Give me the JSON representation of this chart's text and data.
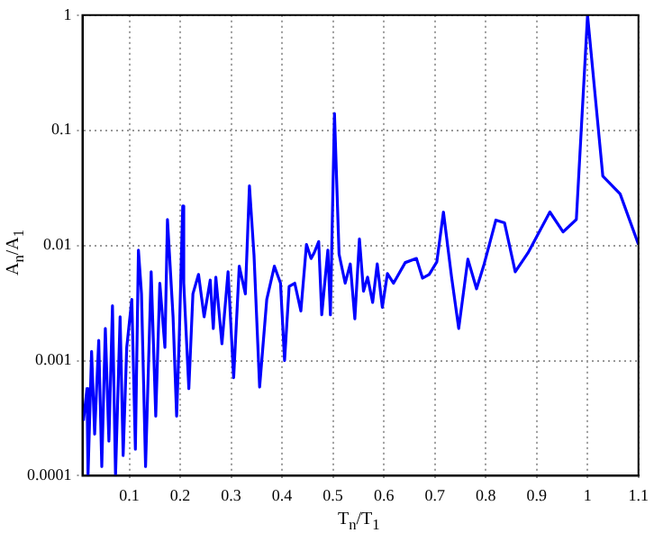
{
  "chart_data": {
    "type": "line",
    "xlabel": "T$_{n}$/T$_{1}$",
    "ylabel": "A$_{n}$/A$_{1}$",
    "log": "y",
    "grid": true,
    "legend": false,
    "marker": "none",
    "line_style": "solid",
    "xlim": [
      0.008,
      1.1
    ],
    "xticks": [
      0.1,
      0.2,
      0.3,
      0.4,
      0.5,
      0.6,
      0.7,
      0.8,
      0.9,
      1,
      1.1
    ],
    "ylim": [
      0.0001,
      1
    ],
    "yticks": [
      0.0001,
      0.001,
      0.01,
      0.1,
      1
    ],
    "x": [
      0.01,
      0.017,
      0.019,
      0.026,
      0.032,
      0.04,
      0.046,
      0.053,
      0.06,
      0.067,
      0.073,
      0.082,
      0.088,
      0.095,
      0.105,
      0.112,
      0.118,
      0.124,
      0.132,
      0.143,
      0.152,
      0.16,
      0.17,
      0.175,
      0.186,
      0.193,
      0.198,
      0.205,
      0.207,
      0.217,
      0.225,
      0.236,
      0.247,
      0.259,
      0.265,
      0.27,
      0.282,
      0.294,
      0.305,
      0.316,
      0.328,
      0.336,
      0.345,
      0.356,
      0.37,
      0.385,
      0.397,
      0.405,
      0.414,
      0.425,
      0.437,
      0.448,
      0.457,
      0.463,
      0.472,
      0.478,
      0.49,
      0.495,
      0.503,
      0.512,
      0.524,
      0.534,
      0.543,
      0.552,
      0.56,
      0.568,
      0.578,
      0.587,
      0.597,
      0.607,
      0.619,
      0.642,
      0.664,
      0.676,
      0.689,
      0.704,
      0.717,
      0.733,
      0.747,
      0.765,
      0.782,
      0.797,
      0.82,
      0.837,
      0.858,
      0.883,
      0.926,
      0.952,
      0.978,
      1,
      1.03,
      1.064,
      1.1
    ],
    "series": [
      {
        "color": "#0000ff",
        "values": [
          0.0003,
          0.00057,
          0.0001,
          0.0012,
          0.00023,
          0.0015,
          0.00012,
          0.0019,
          0.0002,
          0.003,
          0.0001,
          0.0024,
          0.00015,
          0.0013,
          0.0034,
          0.00017,
          0.0091,
          0.0038,
          0.00012,
          0.0059,
          0.00033,
          0.0047,
          0.0013,
          0.0168,
          0.0024,
          0.00033,
          0.0015,
          0.022,
          0.0047,
          0.00057,
          0.0038,
          0.0056,
          0.0024,
          0.005,
          0.0019,
          0.0053,
          0.0014,
          0.0059,
          0.00071,
          0.0066,
          0.0038,
          0.033,
          0.0082,
          0.00059,
          0.0034,
          0.0066,
          0.0047,
          0.001,
          0.0044,
          0.0047,
          0.0027,
          0.0102,
          0.0077,
          0.0086,
          0.0108,
          0.0025,
          0.0091,
          0.0025,
          0.14,
          0.0084,
          0.0047,
          0.0069,
          0.0023,
          0.0114,
          0.004,
          0.0053,
          0.0032,
          0.0069,
          0.0029,
          0.0057,
          0.0047,
          0.0071,
          0.0077,
          0.0052,
          0.0056,
          0.0072,
          0.0195,
          0.0053,
          0.0019,
          0.0076,
          0.0042,
          0.0069,
          0.0166,
          0.0157,
          0.0059,
          0.0086,
          0.0195,
          0.0131,
          0.0168,
          1,
          0.04,
          0.028,
          0.0102
        ]
      }
    ]
  }
}
